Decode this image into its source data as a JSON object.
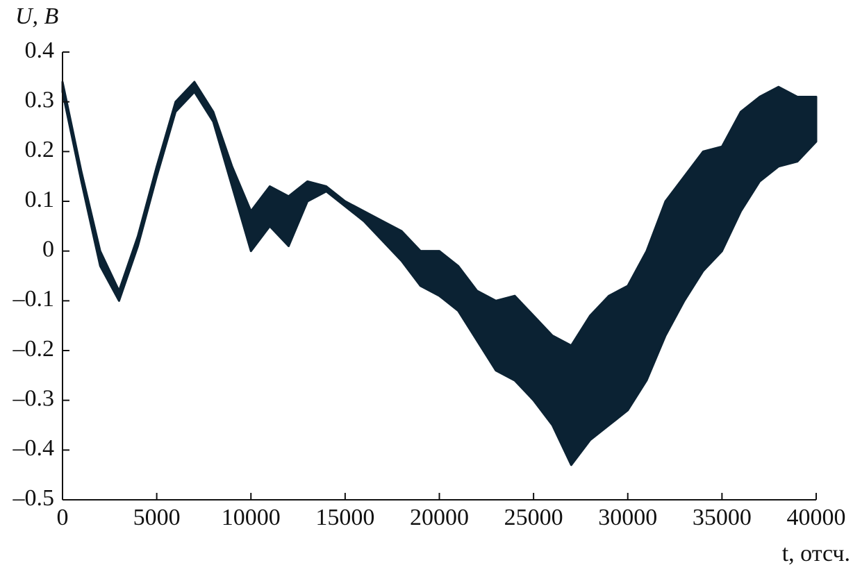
{
  "chart_data": {
    "type": "band",
    "ylabel": "U, В",
    "xlabel": "t, отсч.",
    "x": [
      0,
      1000,
      2000,
      3000,
      4000,
      5000,
      6000,
      7000,
      8000,
      9000,
      10000,
      11000,
      12000,
      13000,
      14000,
      15000,
      16000,
      17000,
      18000,
      19000,
      20000,
      21000,
      22000,
      23000,
      24000,
      25000,
      26000,
      27000,
      28000,
      29000,
      30000,
      31000,
      32000,
      33000,
      34000,
      35000,
      36000,
      37000,
      38000,
      39000,
      40000
    ],
    "upper": [
      0.34,
      0.16,
      0.0,
      -0.08,
      0.03,
      0.17,
      0.3,
      0.34,
      0.28,
      0.17,
      0.08,
      0.13,
      0.11,
      0.14,
      0.13,
      0.1,
      0.08,
      0.06,
      0.04,
      0.0,
      0.0,
      -0.03,
      -0.08,
      -0.1,
      -0.09,
      -0.13,
      -0.17,
      -0.19,
      -0.13,
      -0.09,
      -0.07,
      0.0,
      0.1,
      0.15,
      0.2,
      0.21,
      0.28,
      0.31,
      0.33,
      0.31,
      0.31
    ],
    "lower": [
      0.32,
      0.14,
      -0.03,
      -0.1,
      0.01,
      0.15,
      0.28,
      0.32,
      0.26,
      0.13,
      0.0,
      0.05,
      0.01,
      0.1,
      0.12,
      0.09,
      0.06,
      0.02,
      -0.02,
      -0.07,
      -0.09,
      -0.12,
      -0.18,
      -0.24,
      -0.26,
      -0.3,
      -0.35,
      -0.43,
      -0.38,
      -0.35,
      -0.32,
      -0.26,
      -0.17,
      -0.1,
      -0.04,
      0.0,
      0.08,
      0.14,
      0.17,
      0.18,
      0.22
    ],
    "color": "#0b2233",
    "xlim": [
      0,
      40000
    ],
    "ylim": [
      -0.5,
      0.4
    ],
    "xticks": [
      0,
      5000,
      10000,
      15000,
      20000,
      25000,
      30000,
      35000,
      40000
    ],
    "yticks": [
      {
        "value": -0.5,
        "label": "–0.5"
      },
      {
        "value": -0.4,
        "label": "–0.4"
      },
      {
        "value": -0.3,
        "label": "–0.3"
      },
      {
        "value": -0.2,
        "label": "–0.2"
      },
      {
        "value": -0.1,
        "label": "–0.1"
      },
      0,
      0.1,
      0.2,
      0.3,
      0.4
    ],
    "grid": false
  }
}
